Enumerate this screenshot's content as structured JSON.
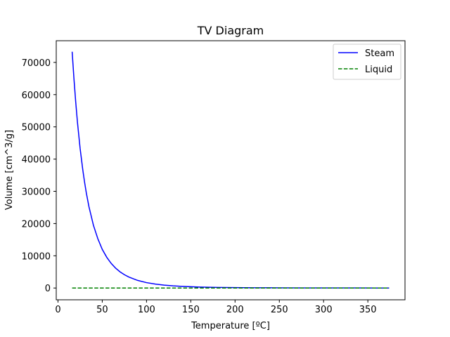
{
  "chart_data": {
    "type": "line",
    "title": "TV Diagram",
    "xlabel": "Temperature [ºC]",
    "ylabel": "Volume [cm^3/g]",
    "xlim": [
      -1.96,
      391.96
    ],
    "ylim": [
      -3653,
      76725
    ],
    "xticks": [
      0,
      50,
      100,
      150,
      200,
      250,
      300,
      350
    ],
    "yticks": [
      0,
      10000,
      20000,
      30000,
      40000,
      50000,
      60000,
      70000
    ],
    "grid": false,
    "legend_position": "top-right",
    "series": [
      {
        "name": "Steam",
        "color": "#0000ff",
        "style": "solid",
        "x": [
          16,
          18,
          20,
          22,
          25,
          28,
          30,
          32,
          35,
          40,
          45,
          50,
          55,
          60,
          65,
          70,
          75,
          80,
          90,
          100,
          110,
          120,
          130,
          140,
          150,
          160,
          170,
          180,
          200,
          220,
          250,
          280,
          300,
          320,
          340,
          360,
          374
        ],
        "y": [
          73300,
          65100,
          57800,
          51400,
          43300,
          36700,
          32900,
          29500,
          25200,
          19500,
          15300,
          12000,
          9570,
          7670,
          6190,
          5040,
          4130,
          3410,
          2360,
          1670,
          1210,
          892,
          668,
          509,
          393,
          307,
          243,
          194,
          127,
          86,
          50,
          30,
          22,
          15,
          11,
          7,
          3
        ]
      },
      {
        "name": "Liquid",
        "color": "#008000",
        "style": "dashed",
        "x": [
          16,
          374
        ],
        "y": [
          1,
          3
        ]
      }
    ]
  }
}
